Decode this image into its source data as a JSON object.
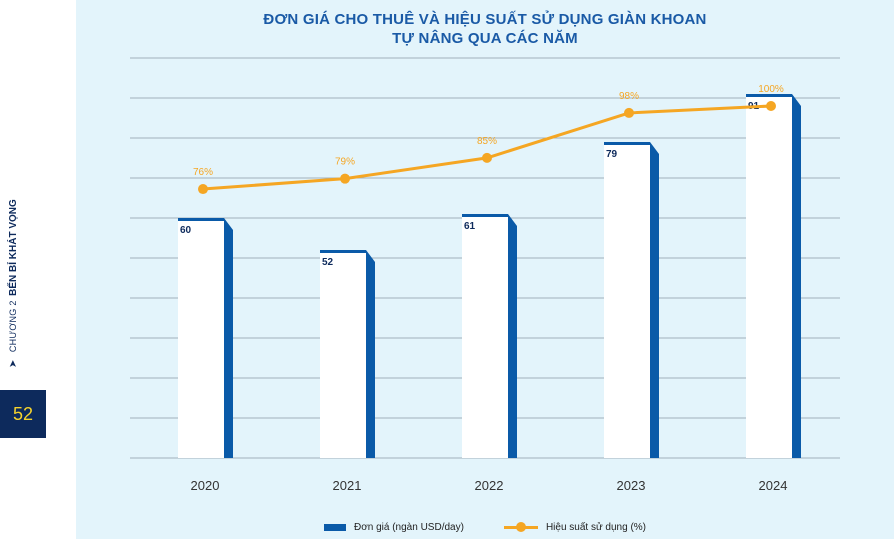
{
  "page": {
    "chapter": "CHƯƠNG 2",
    "chapter_title": "BẾN BỈ KHÁT VỌNG",
    "page_number": "52"
  },
  "chart_data": {
    "type": "bar",
    "title_lines": [
      "ĐƠN GIÁ CHO THUÊ VÀ HIỆU SUẤT SỬ DỤNG GIÀN KHOAN",
      "TỰ NÂNG QUA CÁC NĂM"
    ],
    "categories": [
      "2020",
      "2021",
      "2022",
      "2023",
      "2024"
    ],
    "series": [
      {
        "name": "Đơn giá (ngàn USD/day)",
        "type": "bar",
        "values": [
          60,
          52,
          61,
          79,
          91
        ],
        "labels": [
          "60",
          "52",
          "61",
          "79",
          "91"
        ],
        "color": "#0a5aa8"
      },
      {
        "name": "Hiệu suất sử dụng (%)",
        "type": "line",
        "values": [
          76,
          79,
          85,
          98,
          100
        ],
        "labels": [
          "76%",
          "79%",
          "85%",
          "98%",
          "100%"
        ],
        "color": "#f5a623"
      }
    ],
    "xlabel": "",
    "ylabel": "",
    "ylim": [
      0,
      100
    ],
    "grid": true,
    "legend_position": "bottom"
  }
}
